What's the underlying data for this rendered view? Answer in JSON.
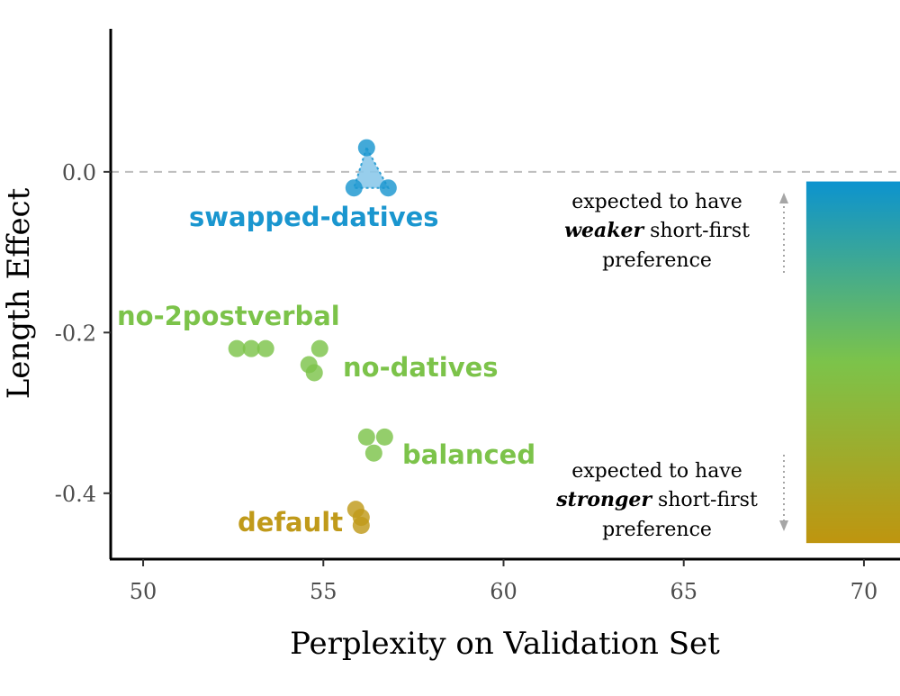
{
  "chart_data": {
    "type": "scatter",
    "title": "",
    "xlabel": "Perplexity on Validation Set",
    "ylabel": "Length Effect",
    "xlim": [
      49.1,
      71.0
    ],
    "ylim": [
      -0.482,
      0.178
    ],
    "x_ticks": [
      50,
      55,
      60,
      65,
      70
    ],
    "x_tick_labels": [
      "50",
      "55",
      "60",
      "65",
      "70"
    ],
    "y_ticks": [
      0.0,
      -0.2,
      -0.4
    ],
    "y_tick_labels": [
      "0.0",
      "-0.2",
      "-0.4"
    ],
    "reference_line": {
      "y": 0.0,
      "style": "dashed",
      "color": "#bdbdbd"
    },
    "grid": false,
    "series": [
      {
        "name": "swapped-datives",
        "color": "#1a96cf",
        "points": [
          {
            "x": 56.2,
            "y": 0.03
          },
          {
            "x": 55.85,
            "y": -0.02
          },
          {
            "x": 56.8,
            "y": -0.02
          }
        ]
      },
      {
        "name": "no-2postverbal",
        "color": "#7cc34a",
        "points": [
          {
            "x": 52.6,
            "y": -0.22
          },
          {
            "x": 53.0,
            "y": -0.22
          },
          {
            "x": 53.4,
            "y": -0.22
          }
        ]
      },
      {
        "name": "no-datives",
        "color": "#7cc34a",
        "points": [
          {
            "x": 54.9,
            "y": -0.22
          },
          {
            "x": 54.6,
            "y": -0.24
          },
          {
            "x": 54.75,
            "y": -0.25
          }
        ]
      },
      {
        "name": "balanced",
        "color": "#7cc34a",
        "points": [
          {
            "x": 56.2,
            "y": -0.33
          },
          {
            "x": 56.7,
            "y": -0.33
          },
          {
            "x": 56.4,
            "y": -0.35
          }
        ]
      },
      {
        "name": "default",
        "color": "#c09a1a",
        "points": [
          {
            "x": 55.9,
            "y": -0.42
          },
          {
            "x": 56.05,
            "y": -0.43
          },
          {
            "x": 56.05,
            "y": -0.44
          }
        ]
      }
    ],
    "annotations": {
      "top_line1": "expected to have",
      "top_em": "weaker",
      "top_rest": " short-first",
      "top_line3": "preference",
      "bottom_line1": "expected to have",
      "bottom_em": "stronger",
      "bottom_rest": " short-first",
      "bottom_line3": "preference"
    },
    "gradient_bar": {
      "y_top": -0.012,
      "y_bottom": -0.462,
      "x_start": 68.4,
      "colors": [
        "#0c93cf",
        "#7cc34a",
        "#bf950f"
      ]
    }
  }
}
